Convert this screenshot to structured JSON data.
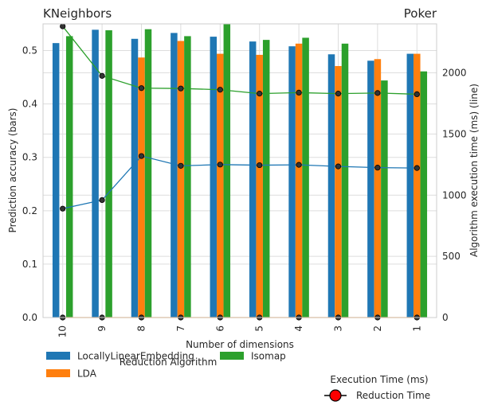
{
  "chart_data": {
    "type": "bar",
    "title_left": "KNeighbors",
    "title_right": "Poker",
    "xlabel": "Number of dimensions",
    "ylabel": "Prediction accuracy (bars)",
    "y2label": "Algorithm execution time (ms) (line)",
    "categories": [
      "10",
      "9",
      "8",
      "7",
      "6",
      "5",
      "4",
      "3",
      "2",
      "1"
    ],
    "ylim": [
      0,
      0.55
    ],
    "yticks": [
      "0.0",
      "0.1",
      "0.2",
      "0.3",
      "0.4",
      "0.5"
    ],
    "y2lim": [
      0,
      2400
    ],
    "y2ticks": [
      "0",
      "500",
      "1000",
      "1500",
      "2000"
    ],
    "grid": true,
    "series": [
      {
        "name": "LocallyLinearEmbedding",
        "color": "#1f77b4",
        "values": [
          0.514,
          0.539,
          0.522,
          0.533,
          0.526,
          0.517,
          0.508,
          0.493,
          0.481,
          0.494
        ]
      },
      {
        "name": "LDA",
        "color": "#ff7f0e",
        "values": [
          0.0,
          0.0,
          0.487,
          0.518,
          0.494,
          0.492,
          0.513,
          0.471,
          0.484,
          0.494
        ]
      },
      {
        "name": "Isomap",
        "color": "#2ca02c",
        "values": [
          0.527,
          0.538,
          0.54,
          0.527,
          0.55,
          0.52,
          0.524,
          0.513,
          0.444,
          0.461
        ]
      }
    ],
    "lines": [
      {
        "color": "#1f77b4",
        "values": [
          890,
          960,
          1320,
          1240,
          1250,
          1245,
          1248,
          1235,
          1225,
          1222
        ]
      },
      {
        "color": "#ff7f0e",
        "values": [
          0,
          0,
          0,
          0,
          0,
          0,
          0,
          0,
          0,
          0
        ]
      },
      {
        "color": "#2ca02c",
        "values": [
          2380,
          1975,
          1875,
          1872,
          1862,
          1830,
          1838,
          1830,
          1835,
          1825
        ]
      }
    ],
    "legend": {
      "title": "Reduction Algorithm",
      "placement": "bottom"
    },
    "legend2": {
      "title": "Execution Time (ms)",
      "label": "Reduction Time",
      "marker_color": "#ff0000"
    }
  }
}
